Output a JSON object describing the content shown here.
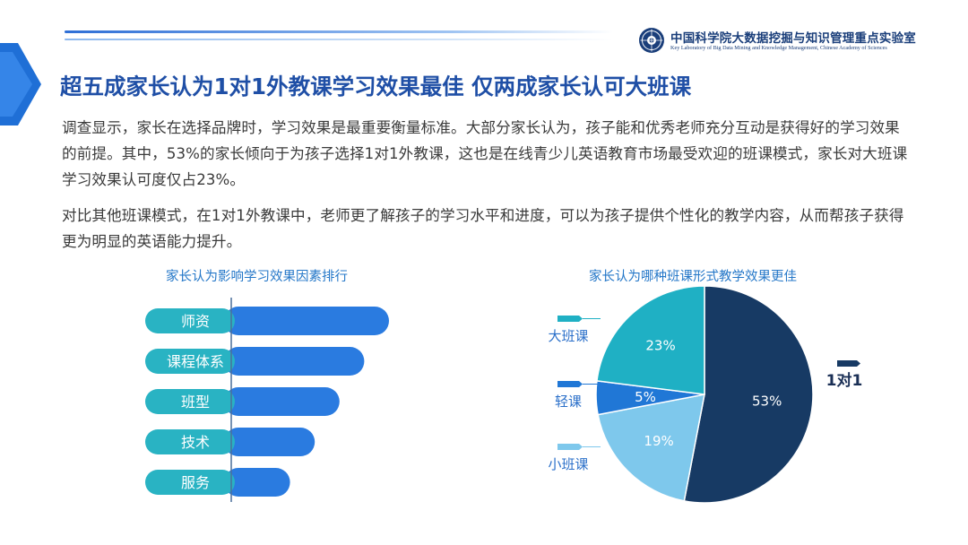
{
  "header": {
    "org_cn": "中国科学院大数据挖掘与知识管理重点实验室",
    "org_en": "Key Laboratory of Big Data Mining and Knowledge Management, Chinese Academy of Sciences"
  },
  "title": "超五成家长认为1对1外教课学习效果最佳 仅两成家长认可大班课",
  "paragraphs": {
    "p1": "调查显示，家长在选择品牌时，学习效果是最重要衡量标准。大部分家长认为，孩子能和优秀老师充分互动是获得好的学习效果的前提。其中，53%的家长倾向于为孩子选择1对1外教课，这也是在线青少儿英语教育市场最受欢迎的班课模式，家长对大班课学习效果认可度仅占23%。",
    "p2": "对比其他班课模式，在1对1外教课中，老师更了解孩子的学习水平和进度，可以为孩子提供个性化的教学内容，从而帮孩子获得更为明显的英语能力提升。"
  },
  "colors": {
    "title": "#1f4fa6",
    "bar": "#2a7be0",
    "label_pill": "#29b3c3",
    "pie_1v1": "#173a64",
    "pie_big": "#1fb0c4",
    "pie_light": "#2077d6",
    "pie_small": "#7ec8ec"
  },
  "chart_data": [
    {
      "type": "bar",
      "orientation": "horizontal",
      "title": "家长认为影响学习效果因素排行",
      "categories": [
        "师资",
        "课程体系",
        "班型",
        "技术",
        "服务"
      ],
      "values": [
        5,
        4,
        3,
        2,
        1
      ],
      "value_note": "ranking only; no values printed"
    },
    {
      "type": "pie",
      "title": "家长认为哪种班课形式教学效果更佳",
      "labels": [
        "1对1",
        "小班课",
        "轻课",
        "大班课"
      ],
      "values": [
        53,
        19,
        5,
        23
      ],
      "value_labels": [
        "53%",
        "19%",
        "5%",
        "23%"
      ]
    }
  ]
}
